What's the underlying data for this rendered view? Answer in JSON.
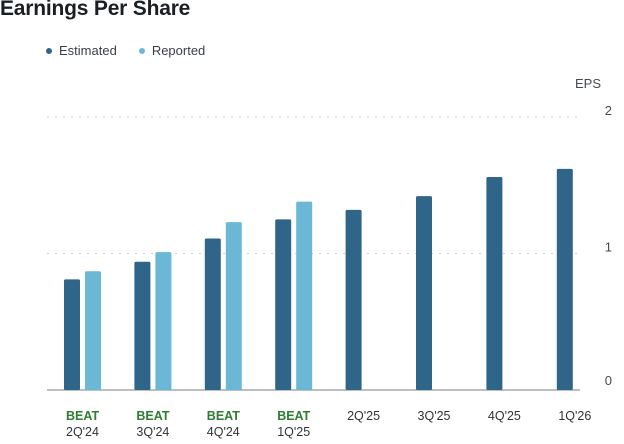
{
  "chart_data": {
    "type": "bar",
    "title": "Earnings Per Share",
    "ylabel": "EPS",
    "ylim": [
      0,
      2
    ],
    "yticks": [
      "0",
      "1",
      "2"
    ],
    "grid": true,
    "legend_position": "top-left",
    "categories": [
      "2Q'24",
      "3Q'24",
      "4Q'24",
      "1Q'25",
      "2Q'25",
      "3Q'25",
      "4Q'25",
      "1Q'26"
    ],
    "badges": [
      "BEAT",
      "BEAT",
      "BEAT",
      "BEAT",
      "",
      "",
      "",
      ""
    ],
    "series": [
      {
        "name": "Estimated",
        "color": "#2f6589",
        "values": [
          0.81,
          0.94,
          1.11,
          1.25,
          1.32,
          1.42,
          1.56,
          1.62
        ]
      },
      {
        "name": "Reported",
        "color": "#6bb8d6",
        "values": [
          0.87,
          1.01,
          1.23,
          1.38,
          null,
          null,
          null,
          null
        ]
      }
    ],
    "badge_color": "#2e7d32"
  }
}
